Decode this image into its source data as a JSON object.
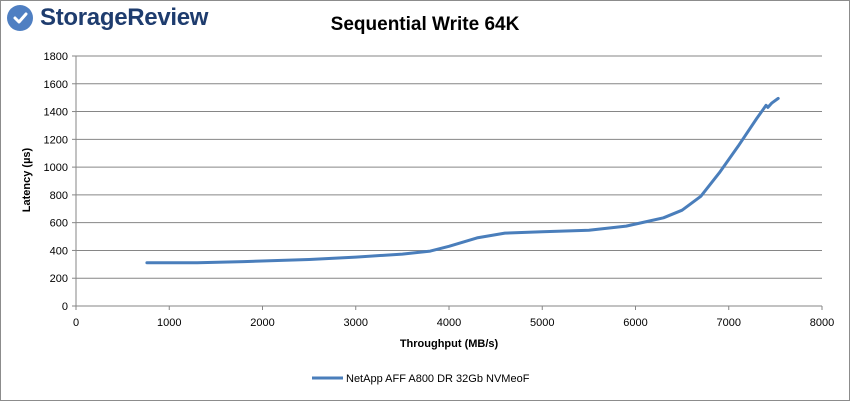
{
  "brand": {
    "name": "StorageReview",
    "logo_color": "#4f7fc2"
  },
  "chart_data": {
    "type": "line",
    "title": "Sequential Write 64K",
    "xlabel": "Throughput (MB/s)",
    "ylabel": "Latency (µs)",
    "xlim": [
      0,
      8000
    ],
    "ylim": [
      0,
      1800
    ],
    "xticks": [
      0,
      1000,
      2000,
      3000,
      4000,
      5000,
      6000,
      7000,
      8000
    ],
    "yticks": [
      0,
      200,
      400,
      600,
      800,
      1000,
      1200,
      1400,
      1600,
      1800
    ],
    "grid": "horizontal",
    "legend_position": "bottom",
    "series": [
      {
        "name": "NetApp AFF A800 DR 32Gb NVMeoF",
        "color": "#4a7ebb",
        "x": [
          760,
          1300,
          1800,
          2500,
          3000,
          3500,
          3800,
          4000,
          4300,
          4600,
          5000,
          5500,
          5900,
          6100,
          6300,
          6500,
          6700,
          6900,
          7100,
          7300,
          7400,
          7420,
          7460,
          7530
        ],
        "y": [
          312,
          312,
          320,
          335,
          352,
          374,
          395,
          430,
          490,
          525,
          535,
          545,
          575,
          605,
          635,
          690,
          790,
          960,
          1150,
          1350,
          1445,
          1430,
          1460,
          1495
        ]
      }
    ]
  }
}
